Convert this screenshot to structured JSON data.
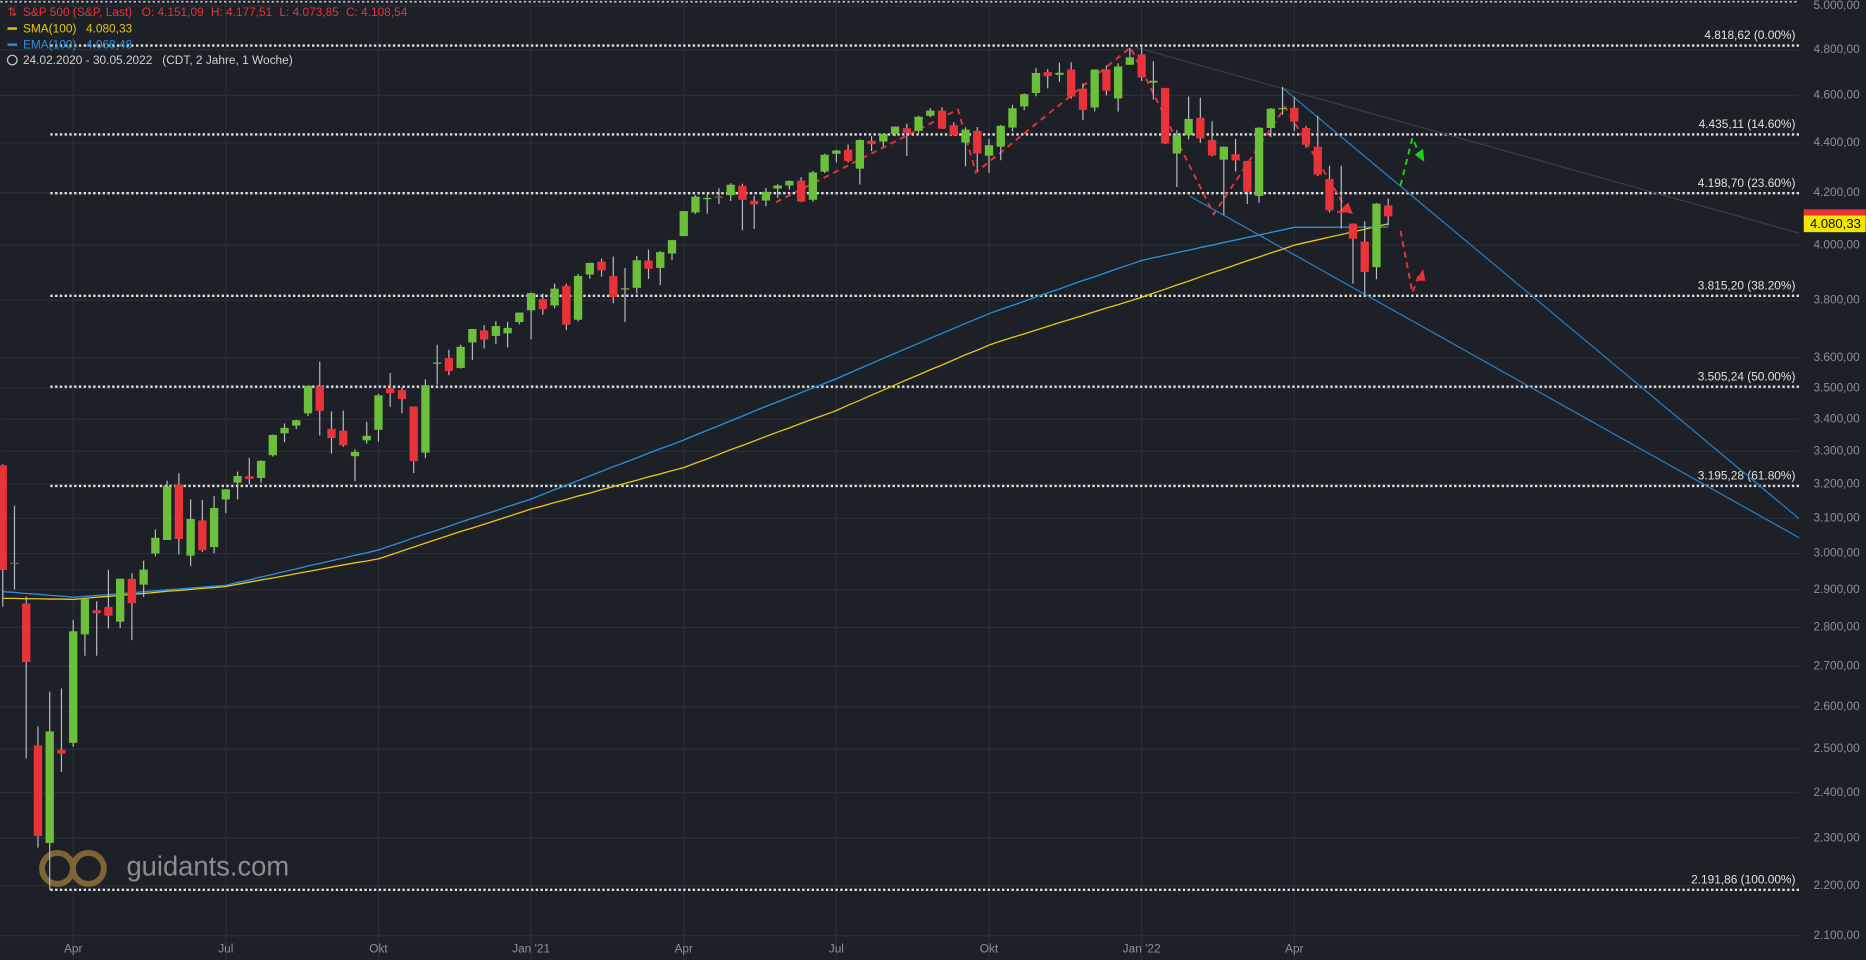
{
  "chart_data": {
    "type": "candlestick",
    "title": "S&P 500 (S&P, Last)",
    "ohlc_header": [
      {
        "value": 4151.09,
        "label": "O: 4.151,09"
      },
      {
        "value": 4177.51,
        "label": "H: 4.177,51"
      },
      {
        "value": 4073.85,
        "label": "L: 4.073,85"
      },
      {
        "value": 4108.54,
        "label": "C: 4.108,54"
      }
    ],
    "subtitle": "24.02.2020 - 30.05.2022   (CDT, 2 Jahre, 1 Woche)",
    "watermark": "guidants.com",
    "log_scale": true,
    "grid": true,
    "up_color": "#6cbf3a",
    "down_color": "#e8333a",
    "categories": [
      null,
      null,
      null,
      null,
      null,
      null,
      "Apr",
      null,
      null,
      null,
      null,
      null,
      null,
      null,
      null,
      null,
      null,
      null,
      null,
      "Jul",
      null,
      null,
      null,
      null,
      null,
      null,
      null,
      null,
      null,
      null,
      null,
      null,
      "Okt",
      null,
      null,
      null,
      null,
      null,
      null,
      null,
      null,
      null,
      null,
      null,
      null,
      "Jan '21",
      null,
      null,
      null,
      null,
      null,
      null,
      null,
      null,
      null,
      null,
      null,
      null,
      "Apr",
      null,
      null,
      null,
      null,
      null,
      null,
      null,
      null,
      null,
      null,
      null,
      null,
      "Jul",
      null,
      null,
      null,
      null,
      null,
      null,
      null,
      null,
      null,
      null,
      null,
      null,
      "Okt",
      null,
      null,
      null,
      null,
      null,
      null,
      null,
      null,
      null,
      null,
      null,
      null,
      "Jan '22",
      null,
      null,
      null,
      null,
      null,
      null,
      null,
      null,
      null,
      null,
      null,
      null,
      "Apr",
      null,
      null,
      null,
      null,
      null,
      null,
      null,
      null
    ],
    "open": [
      3257,
      2974,
      2863,
      2508,
      2290,
      2498,
      2514,
      2782,
      2845,
      2854,
      2815,
      2930,
      2914,
      3000,
      3038,
      3199,
      2994,
      3094,
      3018,
      3155,
      3205,
      3224,
      3219,
      3288,
      3356,
      3380,
      3419,
      3507,
      3370,
      3364,
      3285,
      3334,
      3367,
      3500,
      3494,
      3441,
      3296,
      3584,
      3600,
      3567,
      3653,
      3694,
      3675,
      3684,
      3723,
      3764,
      3803,
      3781,
      3851,
      3731,
      3892,
      3939,
      3886,
      3842,
      3844,
      3943,
      3916,
      3969,
      4034,
      4124,
      4179,
      4185,
      4191,
      4228,
      4169,
      4170,
      4217,
      4229,
      4248,
      4173,
      4284,
      4356,
      4372,
      4296,
      4409,
      4406,
      4438,
      4461,
      4450,
      4513,
      4535,
      4474,
      4402,
      4450,
      4348,
      4385,
      4464,
      4553,
      4610,
      4701,
      4689,
      4712,
      4629,
      4548,
      4713,
      4587,
      4733,
      4779,
      4655,
      4632,
      4357,
      4432,
      4505,
      4412,
      4332,
      4354,
      4327,
      4188,
      4462,
      4541,
      4547,
      4462,
      4385,
      4255,
      4130,
      4081,
      4013,
      3919,
      4151.09
    ],
    "high": [
      3260,
      3137,
      2882,
      2553,
      2637,
      2645,
      2819,
      2879,
      2869,
      2955,
      2931,
      2945,
      2980,
      3068,
      3211,
      3233,
      3155,
      3154,
      3165,
      3186,
      3238,
      3280,
      3272,
      3352,
      3387,
      3399,
      3509,
      3588,
      3425,
      3428,
      3306,
      3392,
      3482,
      3550,
      3502,
      3441,
      3529,
      3645,
      3628,
      3645,
      3699,
      3712,
      3726,
      3724,
      3756,
      3827,
      3823,
      3859,
      3859,
      3894,
      3935,
      3950,
      3958,
      3915,
      3960,
      3983,
      3978,
      4020,
      4129,
      4191,
      4195,
      4218,
      4238,
      4236,
      4189,
      4219,
      4234,
      4249,
      4262,
      4287,
      4356,
      4372,
      4394,
      4415,
      4429,
      4440,
      4468,
      4480,
      4513,
      4545,
      4549,
      4486,
      4465,
      4466,
      4417,
      4475,
      4560,
      4608,
      4718,
      4714,
      4743,
      4744,
      4652,
      4713,
      4731,
      4740,
      4808,
      4819,
      4749,
      4632,
      4453,
      4595,
      4590,
      4490,
      4386,
      4417,
      4327,
      4465,
      4546,
      4637,
      4593,
      4471,
      4513,
      4308,
      4308,
      4082,
      4090,
      4160,
      4177.51
    ],
    "low": [
      2855,
      2901,
      2478,
      2280,
      2192,
      2447,
      2505,
      2727,
      2727,
      2797,
      2798,
      2767,
      2881,
      2992,
      3038,
      2997,
      2965,
      3004,
      3000,
      3115,
      3155,
      3200,
      3205,
      3284,
      3328,
      3369,
      3410,
      3349,
      3293,
      3314,
      3209,
      3324,
      3330,
      3440,
      3419,
      3234,
      3279,
      3512,
      3543,
      3565,
      3594,
      3633,
      3648,
      3636,
      3715,
      3663,
      3749,
      3771,
      3695,
      3725,
      3876,
      3884,
      3789,
      3723,
      3824,
      3876,
      3853,
      3944,
      4034,
      4118,
      4119,
      4157,
      4168,
      4056,
      4061,
      4148,
      4180,
      4213,
      4164,
      4165,
      4278,
      4321,
      4321,
      4233,
      4367,
      4385,
      4428,
      4347,
      4441,
      4508,
      4458,
      4431,
      4305,
      4288,
      4279,
      4330,
      4447,
      4537,
      4596,
      4630,
      4659,
      4585,
      4495,
      4532,
      4600,
      4531,
      4733,
      4662,
      4582,
      4395,
      4223,
      4415,
      4401,
      4345,
      4115,
      4284,
      4157,
      4161,
      4424,
      4517,
      4450,
      4381,
      4267,
      4124,
      4062,
      3859,
      3810,
      3875,
      4073.85
    ],
    "close": [
      2954,
      2972,
      2711,
      2305,
      2541,
      2489,
      2790,
      2875,
      2837,
      2831,
      2930,
      2864,
      2955,
      3044,
      3194,
      3041,
      3098,
      3009,
      3130,
      3185,
      3225,
      3216,
      3271,
      3351,
      3373,
      3397,
      3508,
      3427,
      3341,
      3319,
      3298,
      3348,
      3477,
      3484,
      3465,
      3270,
      3510,
      3585,
      3557,
      3638,
      3699,
      3663,
      3709,
      3703,
      3756,
      3825,
      3768,
      3841,
      3714,
      3887,
      3934,
      3907,
      3811,
      3842,
      3944,
      3913,
      3974,
      4019,
      4129,
      4185,
      4180,
      4181,
      4232,
      4173,
      4155,
      4204,
      4229,
      4247,
      4166,
      4281,
      4352,
      4369,
      4327,
      4412,
      4395,
      4437,
      4468,
      4442,
      4509,
      4535,
      4459,
      4433,
      4455,
      4357,
      4391,
      4471,
      4545,
      4605,
      4697,
      4683,
      4698,
      4595,
      4538,
      4712,
      4620,
      4726,
      4766,
      4677,
      4663,
      4398,
      4432,
      4500,
      4419,
      4349,
      4385,
      4329,
      4204,
      4463,
      4543,
      4546,
      4488,
      4393,
      4272,
      4132,
      4123,
      4024,
      3901,
      4158,
      4108.54
    ],
    "lines": [
      {
        "name": "SMA(100)",
        "color": "#e6c619",
        "last": {
          "value": 4080.33,
          "label": "4.080,33"
        },
        "values": [
          2877,
          2877,
          2876,
          2876,
          2875,
          2875,
          2874,
          2877,
          2880,
          2882,
          2885,
          2888,
          2890,
          2893,
          2896,
          2898,
          2901,
          2904,
          2906,
          2909,
          2915,
          2921,
          2927,
          2932,
          2938,
          2944,
          2950,
          2956,
          2962,
          2968,
          2974,
          2979,
          2985,
          2996,
          3007,
          3018,
          3029,
          3040,
          3051,
          3062,
          3072,
          3083,
          3094,
          3105,
          3116,
          3127,
          3136,
          3146,
          3155,
          3165,
          3174,
          3184,
          3193,
          3203,
          3212,
          3222,
          3231,
          3241,
          3250,
          3264,
          3277,
          3291,
          3305,
          3318,
          3332,
          3346,
          3360,
          3373,
          3387,
          3401,
          3414,
          3428,
          3445,
          3461,
          3478,
          3494,
          3511,
          3528,
          3544,
          3561,
          3577,
          3594,
          3611,
          3627,
          3644,
          3657,
          3670,
          3682,
          3695,
          3708,
          3721,
          3733,
          3746,
          3759,
          3772,
          3784,
          3797,
          3810,
          3825,
          3839,
          3854,
          3868,
          3883,
          3898,
          3912,
          3927,
          3942,
          3956,
          3971,
          3985,
          4000,
          4010,
          4020,
          4030,
          4040,
          4050,
          4060,
          4070,
          4080
        ]
      },
      {
        "name": "EMA(100)",
        "color": "#2e8fd8",
        "last": {
          "value": 4068.48,
          "label": "4.068,48"
        },
        "values": [
          2895,
          2893,
          2890,
          2888,
          2885,
          2883,
          2880,
          2882,
          2885,
          2887,
          2890,
          2892,
          2895,
          2897,
          2900,
          2902,
          2905,
          2907,
          2910,
          2912,
          2920,
          2927,
          2935,
          2942,
          2950,
          2957,
          2965,
          2972,
          2980,
          2987,
          2995,
          3002,
          3010,
          3021,
          3032,
          3044,
          3055,
          3066,
          3077,
          3089,
          3100,
          3111,
          3122,
          3134,
          3145,
          3156,
          3170,
          3184,
          3197,
          3211,
          3225,
          3239,
          3253,
          3266,
          3280,
          3294,
          3308,
          3321,
          3335,
          3350,
          3365,
          3380,
          3395,
          3410,
          3426,
          3441,
          3456,
          3471,
          3486,
          3501,
          3516,
          3531,
          3548,
          3565,
          3582,
          3599,
          3616,
          3633,
          3650,
          3667,
          3684,
          3701,
          3718,
          3735,
          3752,
          3767,
          3781,
          3796,
          3811,
          3826,
          3840,
          3855,
          3870,
          3884,
          3899,
          3914,
          3928,
          3943,
          3953,
          3962,
          3972,
          3981,
          3991,
          4000,
          4010,
          4019,
          4029,
          4038,
          4048,
          4057,
          4067,
          4067,
          4067,
          4067,
          4068,
          4068,
          4068,
          4068,
          4068
        ]
      }
    ],
    "levels": [
      {
        "value": 4818.62,
        "label": "4.818,62 (0.00%)"
      },
      {
        "value": 4435.11,
        "label": "4.435,11 (14.60%)"
      },
      {
        "value": 4198.7,
        "label": "4.198,70 (23.60%)"
      },
      {
        "value": 3815.2,
        "label": "3.815,20 (38.20%)"
      },
      {
        "value": 3505.24,
        "label": "3.505,24 (50.00%)"
      },
      {
        "value": 3195.28,
        "label": "3.195,28 (61.80%)"
      },
      {
        "value": 2191.86,
        "label": "2.191,86 (100.00%)"
      }
    ],
    "ylim": [
      2053,
      5028
    ],
    "yticks": [
      {
        "value": 5000,
        "label": "5.000,00"
      },
      {
        "value": 4800,
        "label": "4.800,00"
      },
      {
        "value": 4600,
        "label": "4.600,00"
      },
      {
        "value": 4400,
        "label": "4.400,00"
      },
      {
        "value": 4200,
        "label": "4.200,00"
      },
      {
        "value": 4000,
        "label": "4.000,00"
      },
      {
        "value": 3800,
        "label": "3.800,00"
      },
      {
        "value": 3600,
        "label": "3.600,00"
      },
      {
        "value": 3500,
        "label": "3.500,00"
      },
      {
        "value": 3400,
        "label": "3.400,00"
      },
      {
        "value": 3300,
        "label": "3.300,00"
      },
      {
        "value": 3200,
        "label": "3.200,00"
      },
      {
        "value": 3100,
        "label": "3.100,00"
      },
      {
        "value": 3000,
        "label": "3.000,00"
      },
      {
        "value": 2900,
        "label": "2.900,00"
      },
      {
        "value": 2800,
        "label": "2.800,00"
      },
      {
        "value": 2700,
        "label": "2.700,00"
      },
      {
        "value": 2600,
        "label": "2.600,00"
      },
      {
        "value": 2500,
        "label": "2.500,00"
      },
      {
        "value": 2400,
        "label": "2.400,00"
      },
      {
        "value": 2300,
        "label": "2.300,00"
      },
      {
        "value": 2200,
        "label": "2.200,00"
      },
      {
        "value": 2100,
        "label": "2.100,00"
      }
    ]
  }
}
